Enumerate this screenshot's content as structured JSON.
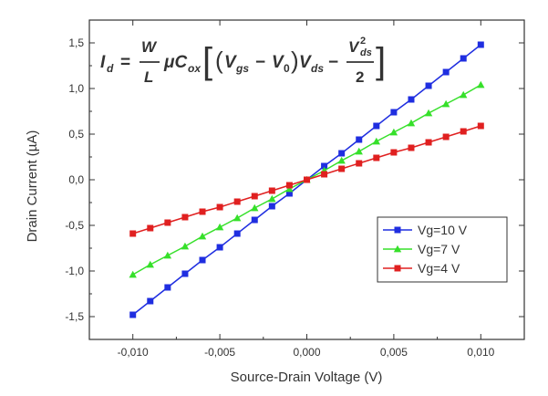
{
  "chart_data": {
    "type": "line",
    "xlabel": "Source-Drain Voltage (V)",
    "ylabel": "Drain Current (µA)",
    "xlim": [
      -0.0125,
      0.0125
    ],
    "ylim": [
      -1.75,
      1.75
    ],
    "xticks": [
      -0.01,
      -0.005,
      0.0,
      0.005,
      0.01
    ],
    "xtick_labels": [
      "-0,010",
      "-0,005",
      "0,000",
      "0,005",
      "0,010"
    ],
    "yticks": [
      -1.5,
      -1.0,
      -0.5,
      0.0,
      0.5,
      1.0,
      1.5
    ],
    "ytick_labels": [
      "-1,5",
      "-1,0",
      "-0,5",
      "0,0",
      "0,5",
      "1,0",
      "1,5"
    ],
    "annotation": "I_d = (W/L) µ C_ox [ (V_gs − V_0) V_ds − V_ds² / 2 ]",
    "legend_position": "bottom-right",
    "grid": false,
    "x": [
      -0.01,
      -0.009,
      -0.008,
      -0.007,
      -0.006,
      -0.005,
      -0.004,
      -0.003,
      -0.002,
      -0.001,
      0.0,
      0.001,
      0.002,
      0.003,
      0.004,
      0.005,
      0.006,
      0.007,
      0.008,
      0.009,
      0.01
    ],
    "series": [
      {
        "name": "Vg=10 V",
        "color": "#1f2ee0",
        "marker": "square",
        "values": [
          -1.48,
          -1.33,
          -1.18,
          -1.03,
          -0.88,
          -0.74,
          -0.59,
          -0.44,
          -0.29,
          -0.15,
          0.0,
          0.15,
          0.29,
          0.44,
          0.59,
          0.74,
          0.88,
          1.03,
          1.18,
          1.33,
          1.48
        ]
      },
      {
        "name": "Vg=7 V",
        "color": "#36e02a",
        "marker": "triangle",
        "values": [
          -1.04,
          -0.93,
          -0.83,
          -0.73,
          -0.62,
          -0.52,
          -0.42,
          -0.31,
          -0.21,
          -0.1,
          0.0,
          0.1,
          0.21,
          0.31,
          0.42,
          0.52,
          0.62,
          0.73,
          0.83,
          0.93,
          1.04
        ]
      },
      {
        "name": "Vg=4 V",
        "color": "#e02020",
        "marker": "square",
        "values": [
          -0.59,
          -0.53,
          -0.47,
          -0.41,
          -0.35,
          -0.3,
          -0.24,
          -0.18,
          -0.12,
          -0.06,
          0.0,
          0.06,
          0.12,
          0.18,
          0.24,
          0.3,
          0.35,
          0.41,
          0.47,
          0.53,
          0.59
        ]
      }
    ]
  }
}
